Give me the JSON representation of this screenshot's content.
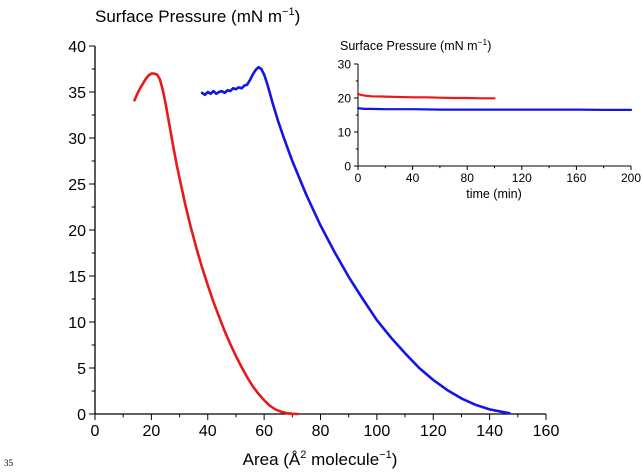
{
  "page_number": "35",
  "chart_data": [
    {
      "type": "line",
      "title": "Surface Pressure (mN m−1)",
      "title_parts": {
        "text": "Surface Pressure (mN m",
        "sup": "−1",
        "close": ")"
      },
      "xlabel": "Area (Å2 molecule−1)",
      "xlabel_parts": {
        "a": "Area (Å",
        "sup1": "2",
        "b": " molecule",
        "sup2": "−1",
        "c": ")"
      },
      "ylabel": "",
      "xlim": [
        0,
        160
      ],
      "ylim": [
        0,
        40
      ],
      "xticks": [
        0,
        20,
        40,
        60,
        80,
        100,
        120,
        140,
        160
      ],
      "yticks": [
        0,
        5,
        10,
        15,
        20,
        25,
        30,
        35,
        40
      ],
      "grid": false,
      "series": [
        {
          "color": "#e8191b",
          "x": [
            14,
            15,
            16,
            17,
            18,
            19,
            20,
            21,
            22,
            23,
            24,
            25,
            26,
            27,
            28,
            29,
            30,
            32,
            34,
            36,
            38,
            40,
            42,
            44,
            46,
            48,
            50,
            52,
            54,
            56,
            58,
            60,
            62,
            64,
            66,
            68,
            70,
            72
          ],
          "y": [
            34.1,
            34.8,
            35.4,
            35.9,
            36.4,
            36.8,
            37.0,
            37.0,
            36.9,
            36.4,
            35.3,
            33.8,
            32.1,
            30.4,
            28.7,
            27.1,
            25.6,
            22.8,
            20.3,
            18.0,
            15.9,
            14.0,
            12.2,
            10.6,
            9.0,
            7.6,
            6.3,
            5.1,
            4.0,
            3.0,
            2.2,
            1.5,
            0.9,
            0.5,
            0.25,
            0.1,
            0.02,
            0.0
          ]
        },
        {
          "color": "#1414e6",
          "x": [
            38,
            39,
            40,
            41,
            42,
            43,
            44,
            45,
            46,
            47,
            48,
            49,
            50,
            51,
            52,
            53,
            54,
            55,
            56,
            57,
            58,
            59,
            60,
            61,
            62,
            63,
            65,
            67,
            70,
            75,
            80,
            85,
            90,
            95,
            100,
            105,
            110,
            115,
            120,
            125,
            130,
            135,
            140,
            145,
            147
          ],
          "y": [
            34.9,
            34.7,
            35.0,
            34.8,
            35.1,
            34.8,
            35.0,
            35.1,
            34.9,
            35.2,
            35.1,
            35.4,
            35.3,
            35.5,
            35.4,
            35.7,
            35.8,
            36.3,
            36.9,
            37.4,
            37.7,
            37.5,
            36.9,
            36.0,
            34.9,
            33.8,
            31.8,
            30.0,
            27.5,
            23.8,
            20.5,
            17.6,
            14.9,
            12.5,
            10.2,
            8.3,
            6.6,
            5.0,
            3.7,
            2.6,
            1.7,
            1.0,
            0.5,
            0.2,
            0.1
          ]
        }
      ]
    },
    {
      "type": "line",
      "title": "Surface Pressure (mN m−1)",
      "title_parts": {
        "text": "Surface Pressure (mN m",
        "sup": "−1",
        "close": ")"
      },
      "xlabel": "time (min)",
      "ylabel": "",
      "xlim": [
        0,
        200
      ],
      "ylim": [
        0,
        30
      ],
      "xticks": [
        0,
        40,
        80,
        120,
        160,
        200
      ],
      "yticks": [
        0,
        10,
        20,
        30
      ],
      "grid": false,
      "series": [
        {
          "color": "#e8191b",
          "x": [
            0,
            2,
            5,
            10,
            20,
            30,
            40,
            50,
            60,
            70,
            80,
            90,
            100
          ],
          "y": [
            21.2,
            20.9,
            20.7,
            20.5,
            20.4,
            20.3,
            20.2,
            20.2,
            20.1,
            20.0,
            20.0,
            19.9,
            19.9
          ]
        },
        {
          "color": "#1414e6",
          "x": [
            0,
            2,
            5,
            10,
            20,
            40,
            60,
            80,
            100,
            120,
            140,
            160,
            180,
            200
          ],
          "y": [
            17.0,
            16.9,
            16.8,
            16.8,
            16.7,
            16.7,
            16.6,
            16.6,
            16.6,
            16.6,
            16.6,
            16.6,
            16.5,
            16.5
          ]
        }
      ]
    }
  ]
}
